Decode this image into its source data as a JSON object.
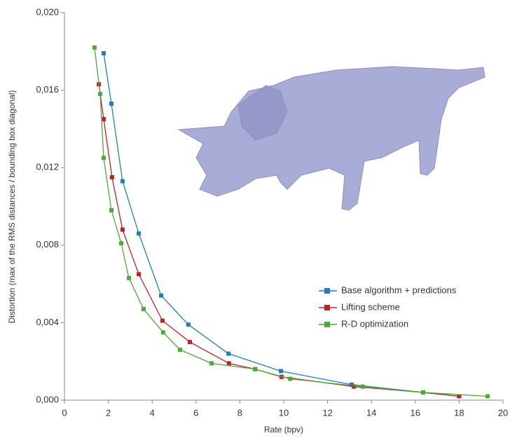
{
  "chart_data": {
    "type": "line",
    "x_label": "Rate (bpv)",
    "y_label": "Distortion (max of the RMS distances / bounding box diagonal)",
    "xlim": [
      0,
      20
    ],
    "xticks": [
      0,
      2,
      4,
      6,
      8,
      10,
      12,
      14,
      16,
      18,
      20
    ],
    "ylim": [
      0,
      0.02
    ],
    "yticks": [
      {
        "value": 0,
        "label": "0,000"
      },
      {
        "value": 0.004,
        "label": "0,004"
      },
      {
        "value": 0.008,
        "label": "0,008"
      },
      {
        "value": 0.012,
        "label": "0,012"
      },
      {
        "value": 0.016,
        "label": "0,016"
      },
      {
        "value": 0.02,
        "label": "0,020"
      }
    ],
    "series": [
      {
        "name": "Base algorithm + predictions",
        "color": "#1f7fc0",
        "x": [
          1.79,
          2.14,
          2.65,
          3.39,
          4.41,
          5.65,
          7.48,
          9.87,
          13.1,
          16.36,
          18.0
        ],
        "values": [
          0.0179,
          0.0153,
          0.0113,
          0.0086,
          0.0054,
          0.0039,
          0.0024,
          0.0015,
          0.0008,
          0.0004,
          0.0002
        ]
      },
      {
        "name": "Lifting scheme",
        "color": "#c0202a",
        "x": [
          1.57,
          1.79,
          2.17,
          2.65,
          3.39,
          4.47,
          5.72,
          7.5,
          8.7,
          9.9,
          13.2,
          16.36,
          18.0
        ],
        "values": [
          0.0163,
          0.0145,
          0.0115,
          0.0088,
          0.0065,
          0.0041,
          0.003,
          0.0019,
          0.0016,
          0.0012,
          0.0007,
          0.0004,
          0.0002
        ]
      },
      {
        "name": "R-D optimization",
        "color": "#4ea83c",
        "x": [
          1.37,
          1.63,
          1.79,
          2.14,
          2.59,
          2.94,
          3.61,
          4.5,
          5.27,
          6.71,
          8.7,
          10.29,
          13.6,
          16.36,
          19.3
        ],
        "values": [
          0.0182,
          0.0158,
          0.0125,
          0.0098,
          0.0081,
          0.0063,
          0.0047,
          0.0035,
          0.0026,
          0.0019,
          0.0016,
          0.0011,
          0.0007,
          0.0004,
          0.0002
        ]
      }
    ]
  }
}
